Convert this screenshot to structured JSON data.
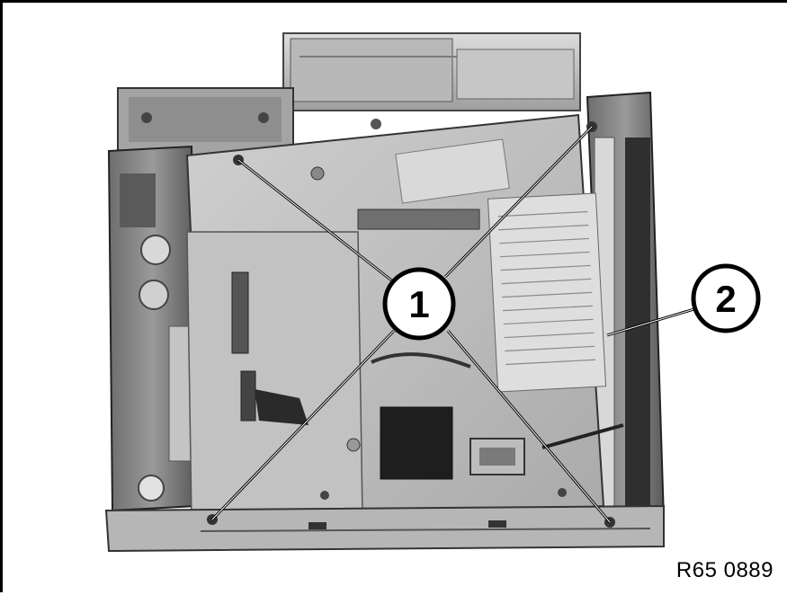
{
  "figure": {
    "reference_code": "R65 0889",
    "callouts": [
      {
        "number": "1",
        "leader_count": 4
      },
      {
        "number": "2",
        "leader_count": 1
      }
    ]
  }
}
